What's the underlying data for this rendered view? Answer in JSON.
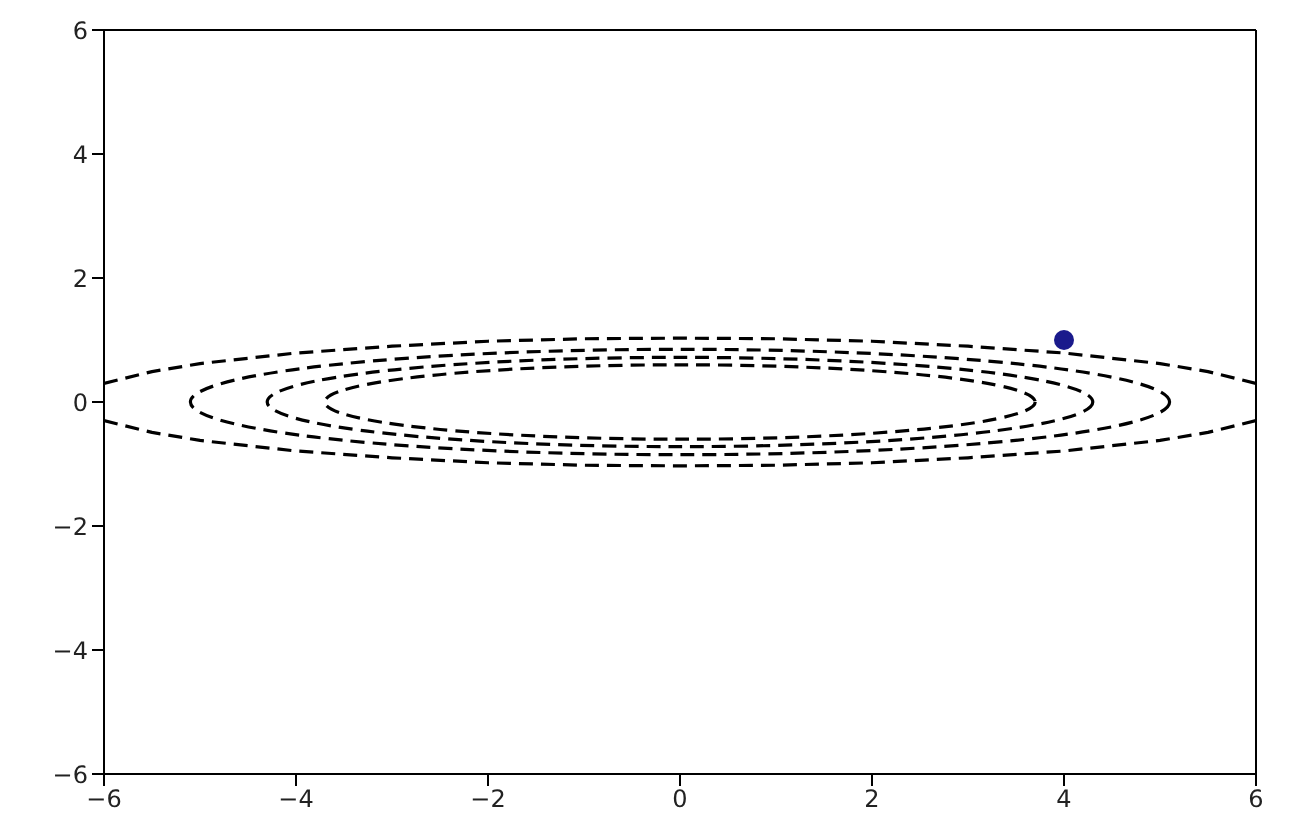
{
  "chart_data": {
    "type": "line",
    "line_style": "dashed",
    "marker": "none",
    "xlim": [
      -6,
      6
    ],
    "ylim": [
      -6,
      6
    ],
    "xticks": [
      -6,
      -4,
      -2,
      0,
      2,
      4,
      6
    ],
    "yticks": [
      -6,
      -4,
      -2,
      0,
      2,
      4,
      6
    ],
    "series": [
      {
        "color": "#000000",
        "x": [
          -6,
          -5.5,
          -5,
          -4,
          -3,
          -2,
          -1,
          0,
          1,
          2,
          3,
          4,
          5,
          5.5,
          6
        ],
        "values": [
          0.3,
          0.49,
          0.62,
          0.79,
          0.9,
          0.98,
          1.02,
          1.03,
          1.02,
          0.98,
          0.9,
          0.79,
          0.62,
          0.49,
          0.3
        ]
      },
      {
        "color": "#000000",
        "x": [
          -6,
          -5.5,
          -5,
          -4,
          -3,
          -2,
          -1,
          0,
          1,
          2,
          3,
          4,
          5,
          5.5,
          6
        ],
        "values": [
          -0.3,
          -0.49,
          -0.62,
          -0.79,
          -0.9,
          -0.98,
          -1.02,
          -1.03,
          -1.02,
          -0.98,
          -0.9,
          -0.79,
          -0.62,
          -0.49,
          -0.3
        ]
      },
      {
        "type": "scatter",
        "color": "#1a1a8c",
        "marker": "circle",
        "x": [
          4
        ],
        "values": [
          1
        ]
      }
    ]
  }
}
